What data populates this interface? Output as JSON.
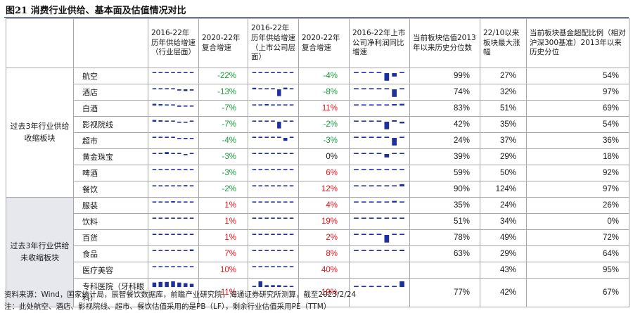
{
  "title": "图21 消费行业供给、基本面及估值情况对比",
  "colors": {
    "bar": "#1f2f9c",
    "red": "#e8141b",
    "green": "#1a9a3a",
    "border": "#a7a7a7",
    "shade": "#e6e8ed"
  },
  "headers": [
    "",
    "",
    "2016-22年历年供给增速（行业层面）",
    "2020-22年复合增速",
    "2016-22年历年供给增速（上市公司层面）",
    "2020-22年复合增速",
    "2016-22年上市公司净利润同比增速",
    "当前板块估值2013年以来历史分位数",
    "22/10以来板块最大涨幅",
    "当前板块基金超配比例（相对沪深300基准）2013年以来历史分位"
  ],
  "groups": [
    {
      "label": "过去3年行业供给收缩板块",
      "rows": 8
    },
    {
      "label": "过去3年行业供给未收缩板块",
      "rows": 6
    }
  ],
  "rows": [
    {
      "name": "航空",
      "s1": [
        0.15,
        0.15,
        0.15,
        0.15,
        0.1,
        0.1,
        0.1
      ],
      "g1": "-22%",
      "c1": "green",
      "s2": [
        0.25,
        0.3,
        0.3,
        0.25,
        0.1,
        0.1,
        0.1
      ],
      "g2": "-4%",
      "c2": "green",
      "s3": [
        0.1,
        0.1,
        0.1,
        0.15,
        -0.9,
        -0.4,
        0.35
      ],
      "pe": "99%",
      "up": "27%",
      "fund": "54%"
    },
    {
      "name": "酒店",
      "s1": [
        0.1,
        0.1,
        0.1,
        0.05,
        -0.15,
        -0.2,
        -0.15
      ],
      "g1": "-13%",
      "c1": "green",
      "s2": [
        0.55,
        0.3,
        0.25,
        0.2,
        -0.8,
        0.6,
        0.1
      ],
      "g2": "-8%",
      "c2": "green",
      "s3": [
        0.1,
        0.1,
        0.1,
        0.1,
        0.1,
        -0.9,
        0.1
      ],
      "pe": "74%",
      "up": "32%",
      "fund": "97%"
    },
    {
      "name": "白酒",
      "s1": [
        0.6,
        0.5,
        0.1,
        0.05,
        -0.15,
        -0.1,
        -0.05
      ],
      "g1": "-7%",
      "c1": "green",
      "s2": [
        0.05,
        0.4,
        0.5,
        0.15,
        0.1,
        0.1,
        0.1
      ],
      "g2": "11%",
      "c2": "red",
      "s3": [
        0.1,
        0.1,
        0.1,
        0.15,
        0.2,
        0.5,
        0.6
      ],
      "pe": "83%",
      "up": "51%",
      "fund": "69%"
    },
    {
      "name": "影视院线",
      "s1": [
        0.6,
        0.5,
        0.4,
        0.3,
        -0.1,
        -0.1,
        0.15
      ],
      "g1": "-7%",
      "c1": "green",
      "s2": [
        0.1,
        0.1,
        0.1,
        0.1,
        -0.8,
        0.1,
        0.1
      ],
      "g2": "-2%",
      "c2": "green",
      "s3": [
        0.3,
        0.1,
        0.1,
        0.1,
        -0.9,
        0.5,
        -0.2
      ],
      "pe": "42%",
      "up": "35%",
      "fund": "54%"
    },
    {
      "name": "超市",
      "s1": [
        0.1,
        0.05,
        0.05,
        0.05,
        -0.1,
        -0.15,
        -0.1
      ],
      "g1": "-4%",
      "c1": "green",
      "s2": [
        0.1,
        0.1,
        0.1,
        0.1,
        0.1,
        -0.35,
        0.1
      ],
      "g2": "-3%",
      "c2": "green",
      "s3": [
        0.1,
        0.1,
        0.1,
        0.1,
        0.1,
        -0.9,
        0.1
      ],
      "pe": "24%",
      "up": "37%",
      "fund": "36%"
    },
    {
      "name": "黄金珠宝",
      "s1": [
        0.1,
        0.1,
        0.7,
        0.1,
        0.1,
        -0.1,
        0.1
      ],
      "g1": "-3%",
      "c1": "green",
      "s2": [
        0.1,
        0.1,
        0.1,
        0.1,
        0.1,
        0.1,
        0.1
      ],
      "g2": "0%",
      "c2": "black",
      "s3": [
        0.1,
        0.1,
        0.1,
        0.1,
        -0.4,
        0.1,
        0.1
      ],
      "pe": "39%",
      "up": "29%",
      "fund": "18%"
    },
    {
      "name": "啤酒",
      "s1": [
        0.1,
        0.1,
        0.1,
        0.1,
        0.1,
        0.1,
        0.1
      ],
      "g1": "-3%",
      "c1": "green",
      "s2": [
        0.1,
        0.1,
        0.1,
        0.1,
        0.15,
        0.1,
        0.1
      ],
      "g2": "6%",
      "c2": "red",
      "s3": [
        0.1,
        0.1,
        0.1,
        0.1,
        0.1,
        0.15,
        0.2
      ],
      "pe": "59%",
      "up": "50%",
      "fund": "92%"
    },
    {
      "name": "餐饮",
      "s1": [
        0.1,
        0.1,
        0.1,
        0.1,
        0.1,
        0.45,
        0.1
      ],
      "g1": "-2%",
      "c1": "green",
      "s2": [
        0.1,
        0.1,
        0.1,
        0.15,
        0.2,
        0.1,
        0.1
      ],
      "g2": "12%",
      "c2": "red",
      "s3": [
        0.1,
        0.1,
        0.1,
        0.1,
        0.1,
        0.4,
        0.8
      ],
      "pe": "90%",
      "up": "124%",
      "fund": "97%"
    },
    {
      "name": "服装",
      "s1": [
        0.1,
        0.1,
        0.1,
        0.5,
        0.1,
        0.1,
        0.1
      ],
      "g1": "1%",
      "c1": "red",
      "s2": [
        0.1,
        0.1,
        0.1,
        0.1,
        0.1,
        0.3,
        0.4
      ],
      "g2": "4%",
      "c2": "red",
      "s3": [
        0.1,
        0.1,
        0.1,
        0.1,
        0.1,
        0.6,
        0.1
      ],
      "pe": "35%",
      "up": "24%",
      "fund": "26%"
    },
    {
      "name": "饮料",
      "s1": [
        0.1,
        0.1,
        0.1,
        0.1,
        0.1,
        0.1,
        0.1
      ],
      "g1": "1%",
      "c1": "red",
      "s2": [
        0.1,
        0.1,
        0.1,
        0.3,
        0.1,
        0.1,
        0.1
      ],
      "g2": "19%",
      "c2": "red",
      "s3": [
        0.1,
        0.1,
        0.1,
        0.1,
        0.4,
        0.1,
        0.1
      ],
      "pe": "51%",
      "up": "34%",
      "fund": "0%"
    },
    {
      "name": "百货",
      "s1": [
        0.1,
        0.3,
        0.3,
        0.1,
        0.1,
        0.1,
        0.1
      ],
      "g1": "1%",
      "c1": "red",
      "s2": [
        0.1,
        0.1,
        0.1,
        0.15,
        0.2,
        0.2,
        0.2
      ],
      "g2": "2%",
      "c2": "red",
      "s3": [
        0.1,
        0.1,
        0.1,
        0.1,
        -0.9,
        0.2,
        0.1
      ],
      "pe": "78%",
      "up": "49%",
      "fund": "72%"
    },
    {
      "name": "食品",
      "s1": [
        0.1,
        0.15,
        0.3,
        0.4,
        0.1,
        0.3,
        0.6
      ],
      "g1": "7%",
      "c1": "red",
      "s2": [
        0.1,
        0.1,
        0.1,
        0.1,
        0.1,
        0.1,
        0.1
      ],
      "g2": "8%",
      "c2": "red",
      "s3": [
        0.1,
        0.1,
        0.1,
        0.1,
        0.1,
        0.1,
        0.5
      ],
      "pe": "63%",
      "up": "29%",
      "fund": "64%"
    },
    {
      "name": "医疗美容",
      "s1": [
        0.3,
        0.4,
        0.2,
        0.2,
        0.4,
        0.3,
        0.2
      ],
      "g1": "10%",
      "c1": "red",
      "s2": [
        0.1,
        0.1,
        0.1,
        0.1,
        0.1,
        0.4,
        0.3
      ],
      "g2": "40%",
      "c2": "red",
      "s3": [],
      "pe": "",
      "up": "43%",
      "fund": "95%"
    },
    {
      "name": "专科医院（牙科眼科）",
      "s1": [
        0.7,
        0.8,
        0.8,
        0.9,
        0.7,
        0.6,
        0.5
      ],
      "g1": "11%",
      "c1": "red",
      "s2": [
        0.1,
        0.9,
        0.3,
        0.3,
        0.3,
        0.2,
        0.1
      ],
      "g2": "19%",
      "c2": "red",
      "s3": [
        0.1,
        0.1,
        0.1,
        0.1,
        0.1,
        0.15,
        0.9
      ],
      "pe": "77%",
      "up": "42%",
      "fund": "67%"
    }
  ],
  "footer": {
    "source": "资料来源：Wind，国家统计局，辰智餐饮数据库，前瞻产业研究院，海通证券研究所测算，截至2023/2/24",
    "note": "注：此处航空、酒店、影视院线、超市、餐饮估值采用的是PB（LF），剩余行业估值采用PE（TTM）"
  }
}
